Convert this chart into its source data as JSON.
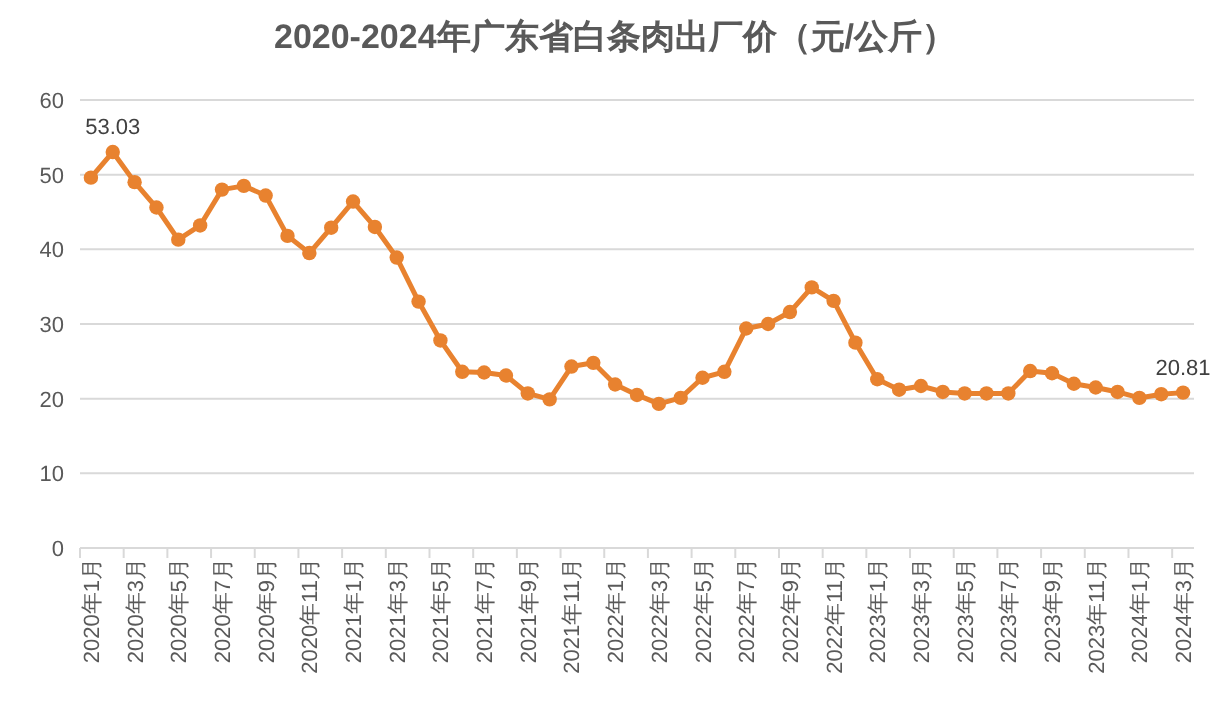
{
  "chart_data": {
    "type": "line",
    "title": "2020-2024年广东省白条肉出厂价（元/公斤）",
    "categories": [
      "2020年1月",
      null,
      "2020年3月",
      null,
      "2020年5月",
      null,
      "2020年7月",
      null,
      "2020年9月",
      null,
      "2020年11月",
      null,
      "2021年1月",
      null,
      "2021年3月",
      null,
      "2021年5月",
      null,
      "2021年7月",
      null,
      "2021年9月",
      null,
      "2021年11月",
      null,
      "2022年1月",
      null,
      "2022年3月",
      null,
      "2022年5月",
      null,
      "2022年7月",
      null,
      "2022年9月",
      null,
      "2022年11月",
      null,
      "2023年1月",
      null,
      "2023年3月",
      null,
      "2023年5月",
      null,
      "2023年7月",
      null,
      "2023年9月",
      null,
      "2023年11月",
      null,
      "2024年1月",
      null,
      "2024年3月"
    ],
    "series": [
      {
        "color": "#e8822f",
        "values": [
          49.6,
          53.03,
          49,
          45.6,
          41.3,
          43.2,
          48,
          48.5,
          47.2,
          41.8,
          39.5,
          42.9,
          46.4,
          43,
          38.9,
          33,
          27.8,
          23.6,
          23.5,
          23.1,
          20.7,
          19.9,
          24.3,
          24.8,
          21.9,
          20.5,
          19.3,
          20.1,
          22.8,
          23.6,
          29.4,
          30,
          31.6,
          34.9,
          33.1,
          27.5,
          22.6,
          21.2,
          21.7,
          20.9,
          20.7,
          20.7,
          20.7,
          23.7,
          23.4,
          22,
          21.5,
          20.9,
          20.1,
          20.6,
          20.81
        ],
        "value_labels": [
          null,
          "53.03",
          null,
          null,
          null,
          null,
          null,
          null,
          null,
          null,
          null,
          null,
          null,
          null,
          null,
          null,
          null,
          null,
          null,
          null,
          null,
          null,
          null,
          null,
          null,
          null,
          null,
          null,
          null,
          null,
          null,
          null,
          null,
          null,
          null,
          null,
          null,
          null,
          null,
          null,
          null,
          null,
          null,
          null,
          null,
          null,
          null,
          null,
          null,
          null,
          "20.81"
        ]
      }
    ],
    "ylim": [
      0,
      60
    ],
    "yticks": [
      0,
      10,
      20,
      30,
      40,
      50,
      60
    ],
    "grid": "y",
    "marker": "circle",
    "line_style": "solid"
  }
}
